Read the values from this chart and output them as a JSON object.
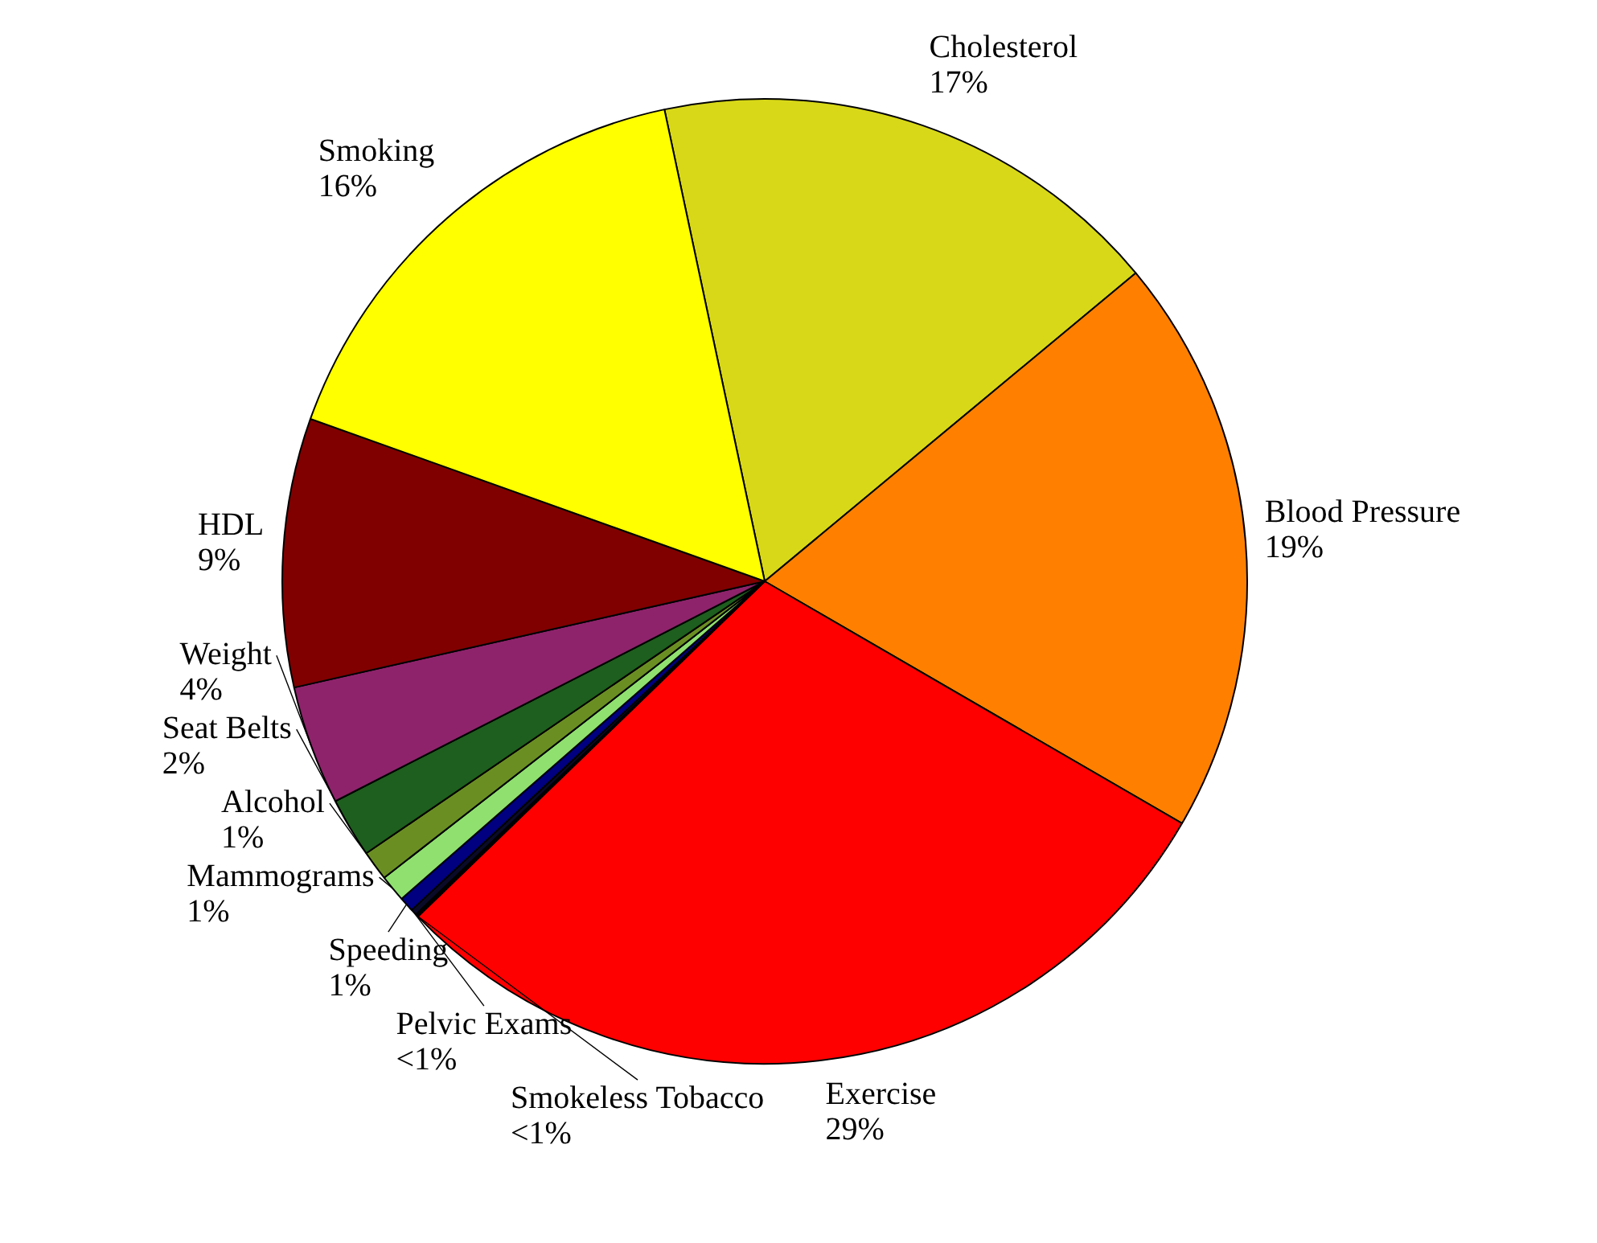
{
  "chart_data": {
    "type": "pie",
    "categories": [
      "Cholesterol",
      "Blood Pressure",
      "Exercise",
      "Smokeless Tobacco",
      "Pelvic Exams",
      "Speeding",
      "Mammograms",
      "Alcohol",
      "Seat Belts",
      "Weight",
      "HDL",
      "Smoking"
    ],
    "values": [
      17.3,
      19.4,
      29.4,
      0.1,
      0.2,
      0.5,
      0.9,
      1.0,
      2,
      4,
      9,
      16.2
    ],
    "value_labels": [
      "17%",
      "19%",
      "29%",
      "<1%",
      "<1%",
      "1%",
      "1%",
      "1%",
      "2%",
      "4%",
      "9%",
      "16%"
    ],
    "colors": [
      "#d8d818",
      "#ff8000",
      "#ff0000",
      "#000000",
      "#0a0a28",
      "#000080",
      "#90e070",
      "#6b8e23",
      "#1e5e1e",
      "#8e236b",
      "#800000",
      "#ffff00"
    ]
  }
}
